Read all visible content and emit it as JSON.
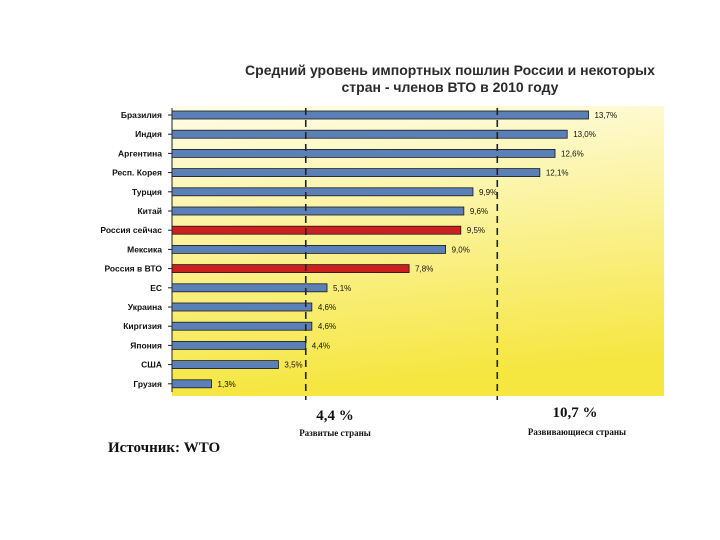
{
  "chart_data": {
    "type": "bar",
    "orientation": "horizontal",
    "title": "Средний уровень импортных пошлин России и некоторых стран - членов ВТО в 2010 году",
    "categories": [
      "Бразилия",
      "Индия",
      "Аргентина",
      "Респ. Корея",
      "Турция",
      "Китай",
      "Россия сейчас",
      "Мексика",
      "Россия в ВТО",
      "ЕС",
      "Украина",
      "Киргизия",
      "Япония",
      "США",
      "Грузия"
    ],
    "values": [
      13.7,
      13.0,
      12.6,
      12.1,
      9.9,
      9.6,
      9.5,
      9.0,
      7.8,
      5.1,
      4.6,
      4.6,
      4.4,
      3.5,
      1.3
    ],
    "value_labels": [
      "13,7%",
      "13,0%",
      "12,6%",
      "12,1%",
      "9,9%",
      "9,6%",
      "9,5%",
      "9,0%",
      "7,8%",
      "5,1%",
      "4,6%",
      "4,6%",
      "4,4%",
      "3,5%",
      "1,3%"
    ],
    "highlighted": [
      "Россия сейчас",
      "Россия в ВТО"
    ],
    "xlim": [
      0,
      15
    ],
    "colors": {
      "bar": "#5b80b8",
      "highlight": "#cc1f1f",
      "background_top": "#fffde8",
      "background_bottom": "#f6e640"
    },
    "reference_lines": [
      {
        "value": 4.4,
        "label": "4,4 %",
        "caption": "Развитые страны"
      },
      {
        "value": 10.7,
        "label": "10,7 %",
        "caption": "Развивающиеся страны"
      }
    ],
    "source": "Источник: WTO"
  }
}
